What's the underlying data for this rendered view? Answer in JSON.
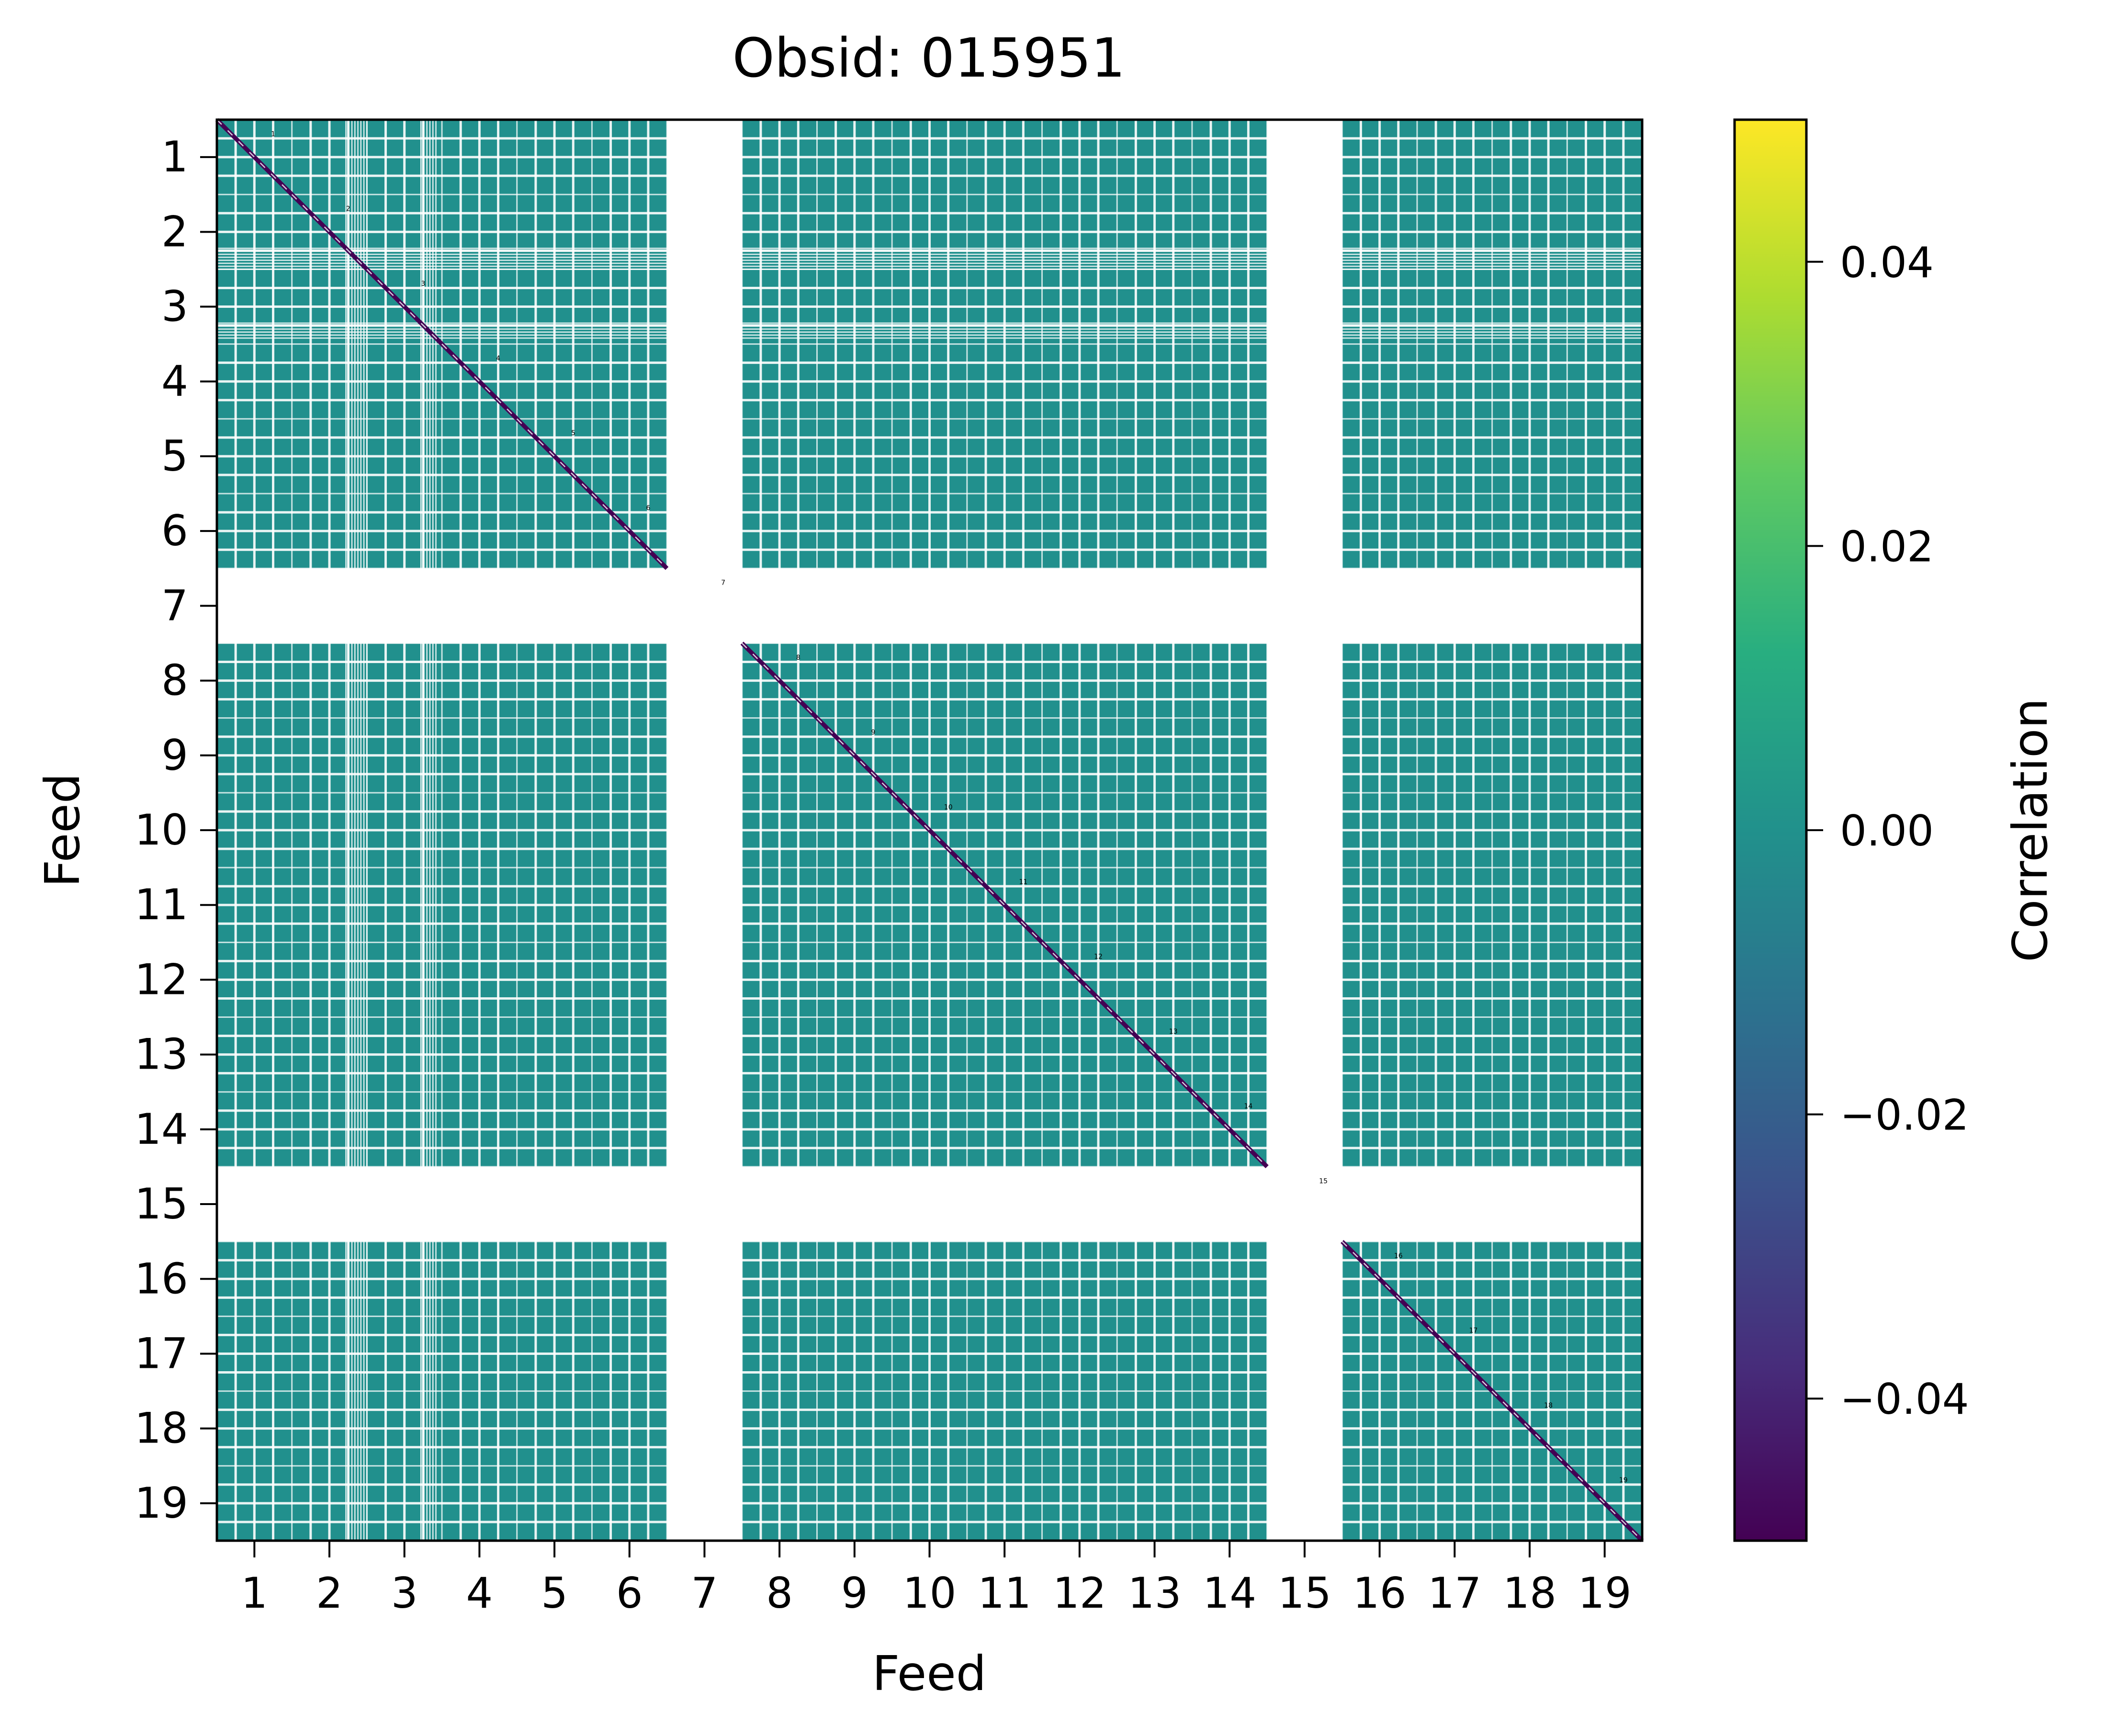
{
  "chart_data": {
    "type": "heatmap",
    "title": "Obsid: 015951",
    "xlabel": "Feed",
    "ylabel": "Feed",
    "feeds": [
      1,
      2,
      3,
      4,
      5,
      6,
      7,
      8,
      9,
      10,
      11,
      12,
      13,
      14,
      15,
      16,
      17,
      18,
      19
    ],
    "x_tick_labels": [
      "1",
      "2",
      "3",
      "4",
      "5",
      "6",
      "7",
      "8",
      "9",
      "10",
      "11",
      "12",
      "13",
      "14",
      "15",
      "16",
      "17",
      "18",
      "19"
    ],
    "y_tick_labels": [
      "1",
      "2",
      "3",
      "4",
      "5",
      "6",
      "7",
      "8",
      "9",
      "10",
      "11",
      "12",
      "13",
      "14",
      "15",
      "16",
      "17",
      "18",
      "19"
    ],
    "masked_feeds": [
      7,
      15
    ],
    "diagonal_labels": [
      "1",
      "2",
      "3",
      "4",
      "5",
      "6",
      "7",
      "8",
      "9",
      "10",
      "11",
      "12",
      "13",
      "14",
      "15",
      "16",
      "17",
      "18",
      "19"
    ],
    "off_diagonal_value": 0.0,
    "diagonal_value": -0.05,
    "colorbar": {
      "label": "Correlation",
      "colormap": "viridis",
      "vmin": -0.05,
      "vmax": 0.05,
      "ticks": [
        -0.04,
        -0.02,
        0.0,
        0.02,
        0.04
      ],
      "tick_labels": [
        "−0.04",
        "−0.02",
        "0.00",
        "0.02",
        "0.04"
      ]
    },
    "colors": {
      "cell": "#21908d",
      "diagonal": "#440154",
      "masked": "#ffffff",
      "grid": "#ffffff"
    }
  }
}
